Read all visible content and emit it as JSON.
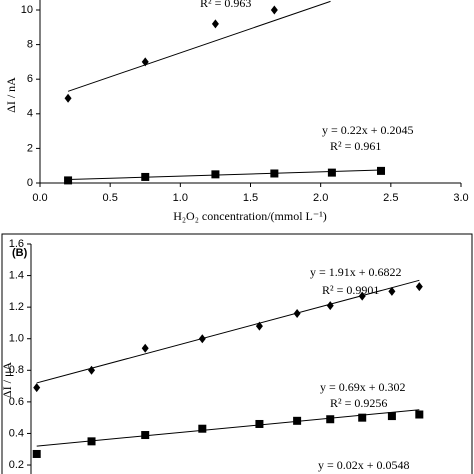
{
  "chart_data": [
    {
      "type": "scatter",
      "x_label": "H₂O₂ concentration/(mmol L⁻¹)",
      "y_label": "ΔI / nA",
      "xlim": [
        0,
        3
      ],
      "ylim": [
        0,
        11
      ],
      "xticks": [
        {
          "value": 0,
          "label": "0.0"
        },
        0.5,
        {
          "value": 1,
          "label": "1.0"
        },
        1.5,
        {
          "value": 2,
          "label": "2.0"
        },
        2.5,
        {
          "value": 3,
          "label": "3.0"
        }
      ],
      "yticks": [
        0,
        2,
        4,
        6,
        8,
        10
      ],
      "annotations": [
        "R² = 0.963",
        "y = 0.22x + 0.2045",
        "R² = 0.961"
      ],
      "series": [
        {
          "marker": "diamond",
          "color": "#000000",
          "x": [
            0.2,
            0.75,
            1.25,
            1.67
          ],
          "values": [
            4.9,
            7.0,
            9.2,
            10.0
          ],
          "trendline": {
            "x": [
              0.2,
              2.07
            ],
            "values": [
              5.3,
              10.5
            ]
          }
        },
        {
          "marker": "square",
          "color": "#000000",
          "x": [
            0.2,
            0.75,
            1.25,
            1.67,
            2.08,
            2.43
          ],
          "values": [
            0.15,
            0.35,
            0.5,
            0.55,
            0.6,
            0.7
          ],
          "trendline": {
            "x": [
              0.2,
              2.43
            ],
            "values": [
              0.2,
              0.75
            ]
          }
        }
      ]
    },
    {
      "type": "scatter",
      "panel_label": "(B)",
      "y_label": "ΔI / μA",
      "xlim": [
        0,
        0.38
      ],
      "ylim": [
        0,
        1.6
      ],
      "yticks": [
        0.2,
        0.4,
        0.6,
        0.8,
        {
          "value": 1,
          "label": "1.0"
        },
        1.2,
        1.4,
        1.6
      ],
      "annotations": [
        "y = 1.91x + 0.6822",
        "R² = 0.9901",
        "y = 0.69x + 0.302",
        "R² = 0.9256",
        "y = 0.02x + 0.0548"
      ],
      "series": [
        {
          "marker": "diamond",
          "color": "#000000",
          "x": [
            0.005,
            0.053,
            0.1,
            0.15,
            0.2,
            0.233,
            0.262,
            0.29,
            0.316,
            0.34
          ],
          "values": [
            0.69,
            0.8,
            0.94,
            1.0,
            1.08,
            1.16,
            1.21,
            1.27,
            1.3,
            1.33
          ],
          "trendline": {
            "x": [
              0.005,
              0.34
            ],
            "values": [
              0.72,
              1.37
            ]
          }
        },
        {
          "marker": "square",
          "color": "#000000",
          "x": [
            0.005,
            0.053,
            0.1,
            0.15,
            0.2,
            0.233,
            0.262,
            0.29,
            0.316,
            0.34
          ],
          "values": [
            0.27,
            0.35,
            0.39,
            0.43,
            0.46,
            0.48,
            0.49,
            0.5,
            0.51,
            0.52
          ],
          "trendline": {
            "x": [
              0.005,
              0.34
            ],
            "values": [
              0.32,
              0.55
            ]
          }
        }
      ]
    }
  ]
}
